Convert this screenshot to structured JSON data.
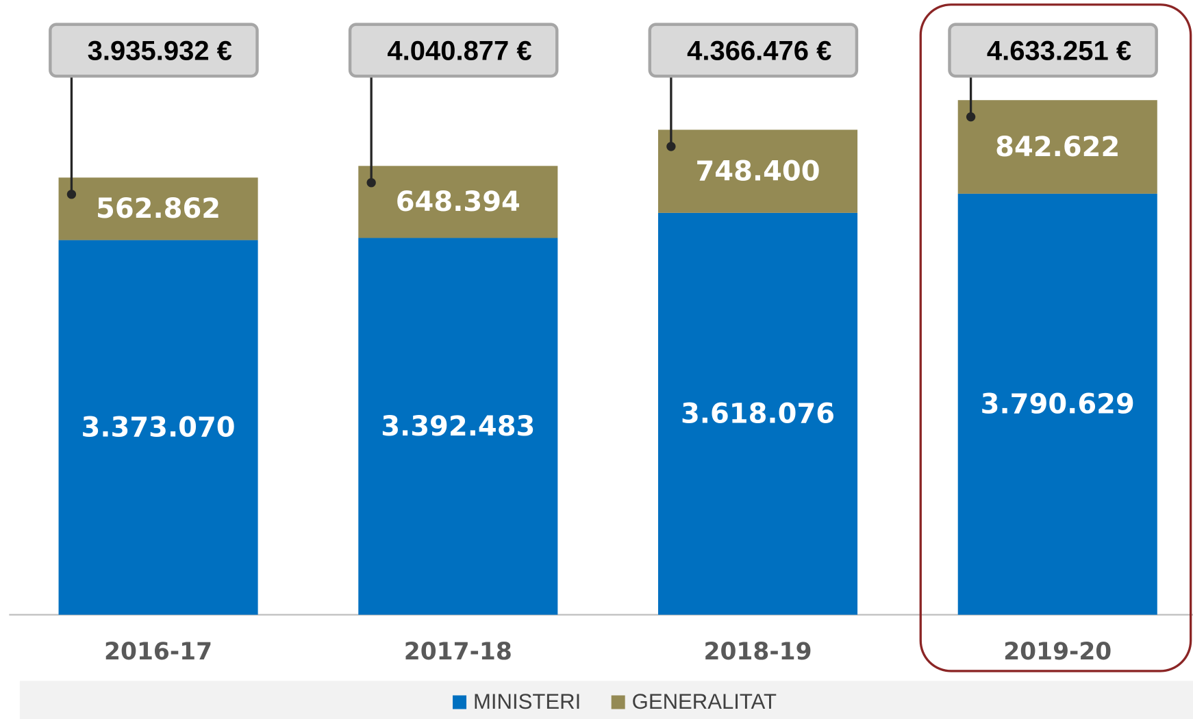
{
  "chart_data": {
    "type": "stacked_bar",
    "categories": [
      "2016-17",
      "2017-18",
      "2018-19",
      "2019-20"
    ],
    "series": [
      {
        "name": "MINISTERI",
        "color": "#0070c0",
        "values": [
          3373070,
          3392483,
          3618076,
          3790629
        ],
        "value_labels": [
          "3.373.070",
          "3.392.483",
          "3.618.076",
          "3.790.629"
        ]
      },
      {
        "name": "GENERALITAT",
        "color": "#948a54",
        "values": [
          562862,
          648394,
          748400,
          842622
        ],
        "value_labels": [
          "562.862",
          "648.394",
          "748.400",
          "842.622"
        ]
      }
    ],
    "totals": [
      3935932,
      4040877,
      4366476,
      4633251
    ],
    "total_labels": [
      "3.935.932 €",
      "4.040.877 €",
      "4.366.476 €",
      "4.633.251 €"
    ],
    "ylim": [
      0,
      5000000
    ],
    "legend": "bottom"
  }
}
